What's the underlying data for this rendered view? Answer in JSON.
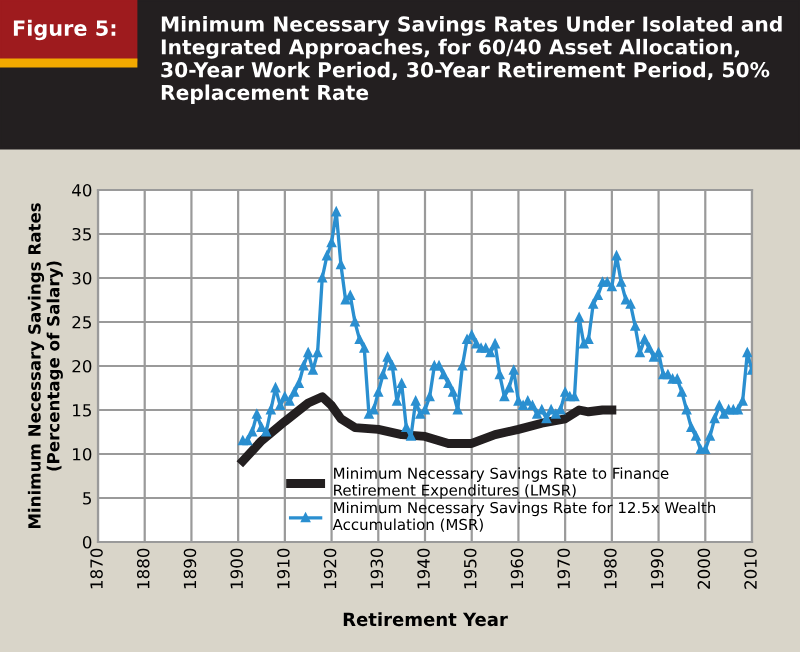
{
  "chart_data": {
    "type": "line",
    "title": "Minimum Necessary Savings Rates Under Isolated and Integrated Approaches, for 60/40 Asset Allocation, 30-Year Work Period, 30-Year Retirement Period, 50% Replacement Rate",
    "annotations": [
      "Figure 5:"
    ],
    "xlabel": "Retirement Year",
    "ylabel": "Minimum Necessary Savings Rates\n(Percentage of Salary)",
    "series": [
      {
        "name": "Minimum Necessary Savings Rate to Finance\nRetirement Expenditures (LMSR)",
        "color": "#231f20",
        "marker": "none",
        "x": [
          1901,
          1905,
          1910,
          1915,
          1918,
          1920,
          1922,
          1925,
          1930,
          1935,
          1940,
          1945,
          1950,
          1955,
          1960,
          1965,
          1970,
          1973,
          1975,
          1978,
          1980
        ],
        "values": [
          9.2,
          11.5,
          13.7,
          15.8,
          16.5,
          15.5,
          14,
          13,
          12.8,
          12.2,
          12,
          11.2,
          11.2,
          12.2,
          12.8,
          13.5,
          14,
          15,
          14.8,
          15,
          15
        ]
      },
      {
        "name": "Minimum Necessary Savings Rate for 12.5x Wealth\nAccumulation (MSR)",
        "color": "#2a8fd0",
        "marker": "triangle",
        "x": [
          1901,
          1902,
          1903,
          1904,
          1905,
          1906,
          1907,
          1908,
          1909,
          1910,
          1911,
          1912,
          1913,
          1914,
          1915,
          1916,
          1917,
          1918,
          1919,
          1920,
          1921,
          1922,
          1923,
          1924,
          1925,
          1926,
          1927,
          1928,
          1929,
          1930,
          1931,
          1932,
          1933,
          1934,
          1935,
          1936,
          1937,
          1938,
          1939,
          1940,
          1941,
          1942,
          1943,
          1944,
          1945,
          1946,
          1947,
          1948,
          1949,
          1950,
          1951,
          1952,
          1953,
          1954,
          1955,
          1956,
          1957,
          1958,
          1959,
          1960,
          1961,
          1962,
          1963,
          1964,
          1965,
          1966,
          1967,
          1968,
          1969,
          1970,
          1971,
          1972,
          1973,
          1974,
          1975,
          1976,
          1977,
          1978,
          1979,
          1980,
          1981,
          1982,
          1983,
          1984,
          1985,
          1986,
          1987,
          1988,
          1989,
          1990,
          1991,
          1992,
          1993,
          1994,
          1995,
          1996,
          1997,
          1998,
          1999,
          2000,
          2001,
          2002,
          2003,
          2004,
          2005,
          2006,
          2007,
          2008,
          2009,
          2010
        ],
        "values": [
          11.5,
          11.5,
          12.5,
          14.5,
          13,
          12.5,
          15,
          17.5,
          15.5,
          16.5,
          16,
          17,
          18,
          20,
          21.5,
          19.5,
          21.5,
          30,
          32.5,
          34,
          37.5,
          31.5,
          27.5,
          28,
          25,
          23,
          22,
          14.5,
          15,
          17,
          19,
          21,
          20,
          16,
          18,
          13,
          12,
          16,
          14.5,
          15,
          16.5,
          20,
          20,
          19,
          18,
          17,
          15,
          20,
          23,
          23.5,
          22.5,
          22,
          22,
          21.5,
          22.5,
          19,
          16.5,
          17.5,
          19.5,
          16,
          15.5,
          16,
          15.5,
          14.5,
          15,
          14,
          15,
          14.5,
          15,
          17,
          16.5,
          16.5,
          25.5,
          22.5,
          23,
          27,
          28,
          29.5,
          29.5,
          29,
          32.5,
          29.5,
          27.5,
          27,
          24.5,
          21.5,
          23,
          22,
          21,
          21.5,
          19,
          19,
          18.5,
          18.5,
          17,
          15,
          13,
          12,
          10.5,
          10.5,
          12,
          14,
          15.5,
          14.5,
          15,
          15,
          15,
          16,
          21.5,
          19.5
        ]
      }
    ],
    "xlim": [
      1870,
      2010
    ],
    "xticks": [
      1870,
      1880,
      1890,
      1900,
      1910,
      1920,
      1930,
      1940,
      1950,
      1960,
      1970,
      1980,
      1990,
      2000,
      2010
    ],
    "ylim": [
      0,
      40
    ],
    "yticks": [
      0,
      5,
      10,
      15,
      20,
      25,
      30,
      35,
      40
    ],
    "grid": true,
    "legend": "bottom"
  }
}
